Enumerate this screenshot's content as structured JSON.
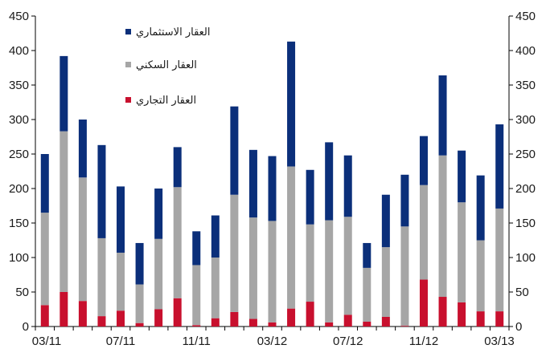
{
  "chart_data": {
    "type": "bar",
    "stacked": true,
    "categories": [
      "03/11",
      "04/11",
      "05/11",
      "06/11",
      "07/11",
      "08/11",
      "09/11",
      "10/11",
      "11/11",
      "12/11",
      "01/12",
      "02/12",
      "03/12",
      "04/12",
      "05/12",
      "06/12",
      "07/12",
      "08/12",
      "09/12",
      "10/12",
      "11/12",
      "12/12",
      "01/13",
      "02/13",
      "03/13"
    ],
    "x_tick_labels": [
      "03/11",
      "07/11",
      "11/11",
      "03/12",
      "07/12",
      "11/12",
      "03/13"
    ],
    "ylim": [
      0,
      450
    ],
    "y_ticks": [
      0,
      50,
      100,
      150,
      200,
      250,
      300,
      350,
      400,
      450
    ],
    "grid": false,
    "legend_position": "top-left",
    "series": [
      {
        "name": "العقار التجاري",
        "color": "#c8102e",
        "values": [
          31,
          50,
          37,
          15,
          23,
          5,
          25,
          41,
          2,
          12,
          21,
          11,
          6,
          26,
          36,
          6,
          17,
          7,
          14,
          1,
          68,
          43,
          35,
          22,
          22
        ]
      },
      {
        "name": "العقار السكني",
        "color": "#a6a6a6",
        "values": [
          134,
          233,
          179,
          113,
          84,
          56,
          102,
          161,
          87,
          88,
          170,
          147,
          147,
          206,
          112,
          148,
          142,
          78,
          101,
          144,
          137,
          205,
          145,
          103,
          149
        ]
      },
      {
        "name": "العقار الاستثماري",
        "color": "#0b2f7a",
        "values": [
          85,
          109,
          84,
          135,
          96,
          60,
          73,
          58,
          49,
          61,
          128,
          98,
          94,
          181,
          79,
          113,
          89,
          36,
          76,
          75,
          71,
          116,
          75,
          94,
          122
        ]
      }
    ]
  }
}
